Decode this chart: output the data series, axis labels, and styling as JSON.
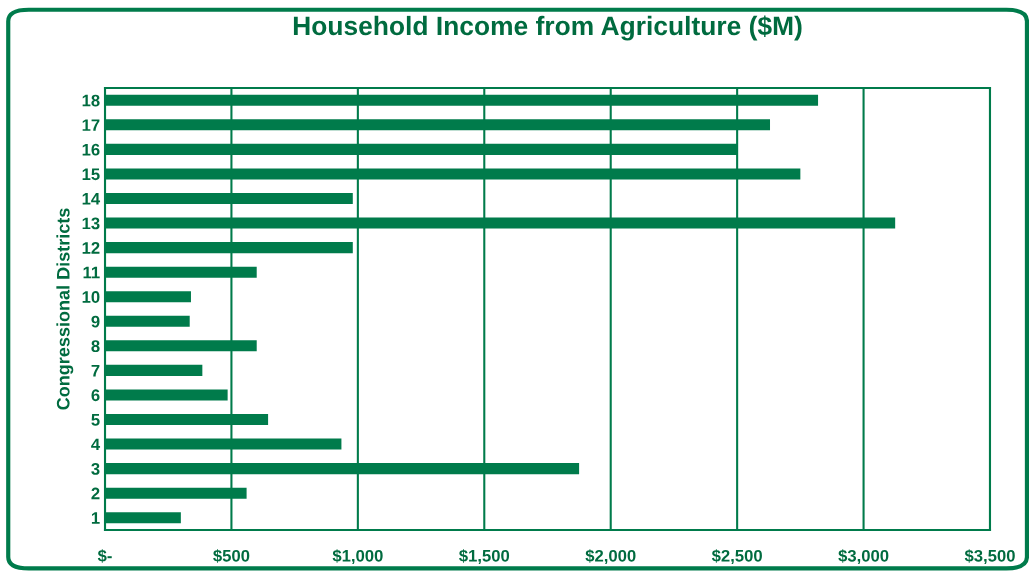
{
  "chart_data": {
    "type": "bar",
    "orientation": "horizontal",
    "title": "Household Income from Agriculture ($M)",
    "ylabel": "Congressional Districts",
    "categories": [
      "18",
      "17",
      "16",
      "15",
      "14",
      "13",
      "12",
      "11",
      "10",
      "9",
      "8",
      "7",
      "6",
      "5",
      "4",
      "3",
      "2",
      "1"
    ],
    "values": [
      2820,
      2630,
      2500,
      2750,
      980,
      3125,
      980,
      600,
      340,
      335,
      600,
      385,
      485,
      645,
      935,
      1875,
      560,
      300
    ],
    "color": "#007b4b",
    "xlim": [
      0,
      3500
    ],
    "xticks": [
      {
        "value": 0,
        "label": "$-"
      },
      {
        "value": 500,
        "label": "$500"
      },
      {
        "value": 1000,
        "label": "$1,000"
      },
      {
        "value": 1500,
        "label": "$1,500"
      },
      {
        "value": 2000,
        "label": "$2,000"
      },
      {
        "value": 2500,
        "label": "$2,500"
      },
      {
        "value": 3000,
        "label": "$3,000"
      },
      {
        "value": 3500,
        "label": "$3,500"
      }
    ],
    "grid": "x"
  }
}
